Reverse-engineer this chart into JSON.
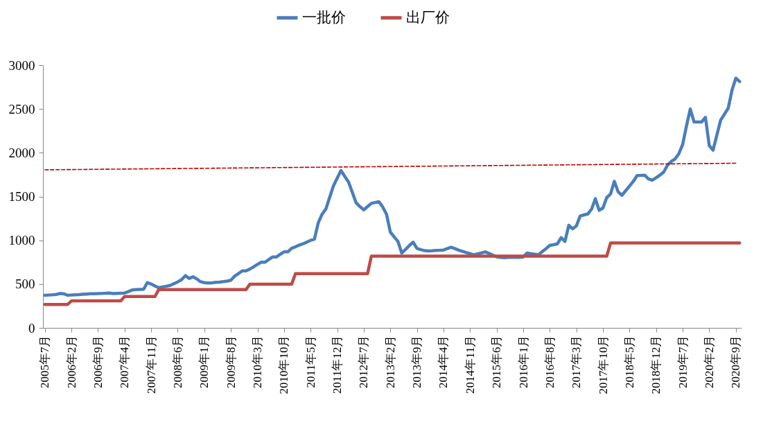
{
  "chart_data": {
    "type": "line",
    "categories": [
      "2005年7月",
      null,
      null,
      null,
      null,
      null,
      null,
      "2006年2月",
      null,
      null,
      null,
      null,
      null,
      null,
      "2006年9月",
      null,
      null,
      null,
      null,
      null,
      null,
      "2007年4月",
      null,
      null,
      null,
      null,
      null,
      null,
      "2007年11月",
      null,
      null,
      null,
      null,
      null,
      null,
      "2008年6月",
      null,
      null,
      null,
      null,
      null,
      null,
      "2009年1月",
      null,
      null,
      null,
      null,
      null,
      null,
      "2009年8月",
      null,
      null,
      null,
      null,
      null,
      null,
      "2010年3月",
      null,
      null,
      null,
      null,
      null,
      null,
      "2010年10月",
      null,
      null,
      null,
      null,
      null,
      null,
      "2011年5月",
      null,
      null,
      null,
      null,
      null,
      null,
      "2011年12月",
      null,
      null,
      null,
      null,
      null,
      null,
      "2012年7月",
      null,
      null,
      null,
      null,
      null,
      null,
      "2013年2月",
      null,
      null,
      null,
      null,
      null,
      null,
      "2013年9月",
      null,
      null,
      null,
      null,
      null,
      null,
      "2014年4月",
      null,
      null,
      null,
      null,
      null,
      null,
      "2014年11月",
      null,
      null,
      null,
      null,
      null,
      null,
      "2015年6月",
      null,
      null,
      null,
      null,
      null,
      null,
      "2016年1月",
      null,
      null,
      null,
      null,
      null,
      null,
      "2016年8月",
      null,
      null,
      null,
      null,
      null,
      null,
      "2017年3月",
      null,
      null,
      null,
      null,
      null,
      null,
      "2017年10月",
      null,
      null,
      null,
      null,
      null,
      null,
      "2018年5月",
      null,
      null,
      null,
      null,
      null,
      null,
      "2018年12月",
      null,
      null,
      null,
      null,
      null,
      null,
      "2019年7月",
      null,
      null,
      null,
      null,
      null,
      null,
      "2020年2月",
      null,
      null,
      null,
      null,
      null,
      null,
      "2020年9月",
      null
    ],
    "series": [
      {
        "name": "一批价",
        "color": "#4a7ebb",
        "values": [
          372,
          375,
          378,
          382,
          393,
          388,
          372,
          375,
          378,
          380,
          383,
          386,
          389,
          390,
          392,
          393,
          395,
          398,
          392,
          394,
          396,
          398,
          415,
          433,
          437,
          439,
          441,
          517,
          500,
          478,
          459,
          467,
          476,
          485,
          505,
          525,
          550,
          596,
          565,
          583,
          560,
          527,
          517,
          512,
          515,
          520,
          523,
          528,
          534,
          544,
          591,
          620,
          651,
          651,
          672,
          697,
          725,
          750,
          750,
          780,
          810,
          810,
          840,
          868,
          868,
          910,
          926,
          945,
          960,
          979,
          1000,
          1013,
          1198,
          1296,
          1356,
          1488,
          1620,
          1710,
          1797,
          1730,
          1665,
          1545,
          1427,
          1385,
          1348,
          1385,
          1422,
          1432,
          1441,
          1380,
          1296,
          1092,
          1040,
          987,
          855,
          895,
          940,
          979,
          908,
          893,
          882,
          879,
          881,
          884,
          886,
          889,
          905,
          921,
          905,
          887,
          873,
          860,
          847,
          834,
          845,
          856,
          868,
          850,
          830,
          812,
          805,
          802,
          805,
          805,
          805,
          805,
          810,
          855,
          848,
          841,
          834,
          870,
          905,
          942,
          950,
          960,
          1031,
          987,
          1172,
          1132,
          1164,
          1277,
          1290,
          1300,
          1356,
          1475,
          1343,
          1369,
          1488,
          1528,
          1673,
          1554,
          1514,
          1567,
          1620,
          1673,
          1739,
          1741,
          1744,
          1700,
          1686,
          1715,
          1744,
          1779,
          1858,
          1900,
          1929,
          1989,
          2095,
          2306,
          2499,
          2351,
          2351,
          2351,
          2404,
          2082,
          2029,
          2200,
          2372,
          2440,
          2509,
          2715,
          2852,
          2813
        ]
      },
      {
        "name": "出厂价",
        "color": "#be4b48",
        "values": [
          268,
          268,
          268,
          268,
          268,
          268,
          268,
          308,
          308,
          308,
          308,
          308,
          308,
          308,
          308,
          308,
          308,
          308,
          308,
          308,
          308,
          358,
          358,
          358,
          358,
          358,
          358,
          358,
          358,
          358,
          438,
          438,
          438,
          438,
          438,
          438,
          438,
          438,
          438,
          438,
          438,
          438,
          438,
          438,
          438,
          438,
          438,
          438,
          438,
          438,
          438,
          438,
          438,
          438,
          499,
          499,
          499,
          499,
          499,
          499,
          499,
          499,
          499,
          499,
          499,
          499,
          619,
          619,
          619,
          619,
          619,
          619,
          619,
          619,
          619,
          619,
          619,
          619,
          619,
          619,
          619,
          619,
          619,
          619,
          619,
          619,
          819,
          819,
          819,
          819,
          819,
          819,
          819,
          819,
          819,
          819,
          819,
          819,
          819,
          819,
          819,
          819,
          819,
          819,
          819,
          819,
          819,
          819,
          819,
          819,
          819,
          819,
          819,
          819,
          819,
          819,
          819,
          819,
          819,
          819,
          819,
          819,
          819,
          819,
          819,
          819,
          819,
          819,
          819,
          819,
          819,
          819,
          819,
          819,
          819,
          819,
          819,
          819,
          819,
          819,
          819,
          819,
          819,
          819,
          819,
          819,
          819,
          819,
          819,
          969,
          969,
          969,
          969,
          969,
          969,
          969,
          969,
          969,
          969,
          969,
          969,
          969,
          969,
          969,
          969,
          969,
          969,
          969,
          969,
          969,
          969,
          969,
          969,
          969,
          969,
          969,
          969,
          969,
          969,
          969,
          969,
          969,
          969,
          969
        ]
      },
      {
        "type": "line",
        "color": "#c00000",
        "line_style": "dashed",
        "x": [
          "2005年7月",
          "2020年9月"
        ],
        "values": [
          1805,
          1880
        ]
      }
    ],
    "ylim": [
      0,
      3000
    ],
    "yticks": [
      0,
      500,
      1000,
      1500,
      2000,
      2500,
      3000
    ],
    "legend": "top",
    "grid": false
  }
}
